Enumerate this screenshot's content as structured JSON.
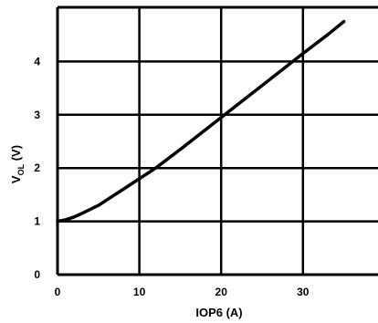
{
  "chart_data": {
    "type": "line",
    "title": "",
    "xlabel": "IOP6 (A)",
    "ylabel": {
      "main": "V",
      "sub": "OL",
      "unit": " (V)"
    },
    "xlim": [
      0,
      40
    ],
    "ylim": [
      0,
      5
    ],
    "xticks": [
      0,
      10,
      20,
      30
    ],
    "yticks": [
      0,
      1,
      2,
      3,
      4
    ],
    "grid": true,
    "series": [
      {
        "x": [
          0,
          1,
          2,
          3,
          5,
          8,
          10,
          12,
          15,
          20,
          25,
          30,
          33,
          35
        ],
        "y": [
          1.0,
          1.03,
          1.08,
          1.15,
          1.3,
          1.6,
          1.8,
          2.0,
          2.35,
          2.95,
          3.55,
          4.15,
          4.5,
          4.75
        ]
      }
    ]
  }
}
